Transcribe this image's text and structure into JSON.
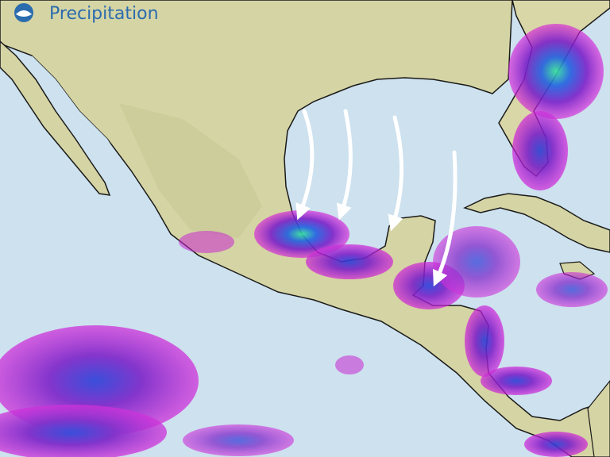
{
  "header": {
    "title": "Precipitation"
  }
}
